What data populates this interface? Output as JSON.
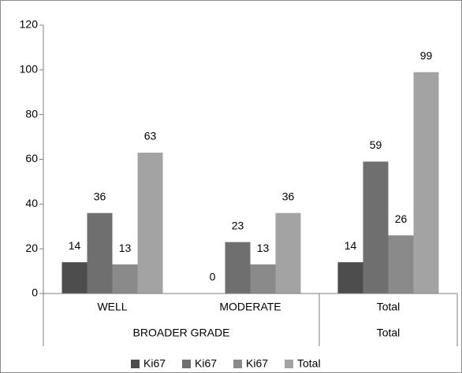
{
  "chart_data": {
    "type": "bar",
    "categories": [
      "WELL",
      "MODERATE",
      "Total"
    ],
    "category_groups": [
      {
        "name": "BROADER GRADE",
        "span": 2
      },
      {
        "name": "Total",
        "span": 1
      }
    ],
    "series": [
      {
        "name": "Ki67",
        "color": "#4d4d4d",
        "values": [
          14,
          0,
          14
        ]
      },
      {
        "name": "Ki67",
        "color": "#6f6f6f",
        "values": [
          36,
          23,
          59
        ]
      },
      {
        "name": "Ki67",
        "color": "#8a8a8a",
        "values": [
          13,
          13,
          26
        ]
      },
      {
        "name": "Total",
        "color": "#a3a3a3",
        "values": [
          63,
          36,
          99
        ]
      }
    ],
    "ylim": [
      0,
      120
    ],
    "yticks": [
      0,
      20,
      40,
      60,
      80,
      100,
      120
    ],
    "grid": false,
    "legend": "bottom"
  }
}
